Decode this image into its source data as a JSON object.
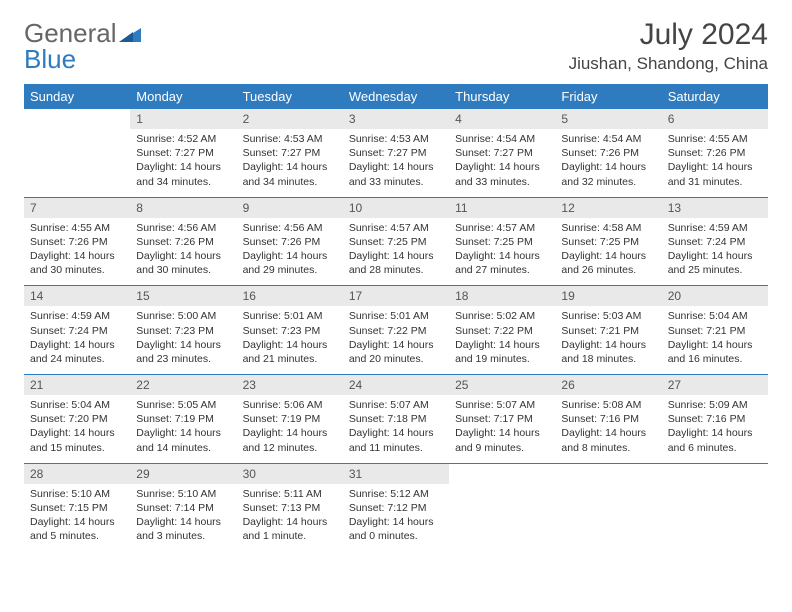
{
  "logo": {
    "text1": "General",
    "text2": "Blue"
  },
  "title": "July 2024",
  "location": "Jiushan, Shandong, China",
  "colors": {
    "header_bg": "#2f7bbf",
    "daynum_bg": "#e9e9e9",
    "border": "#2f7bbf"
  },
  "weekdays": [
    "Sunday",
    "Monday",
    "Tuesday",
    "Wednesday",
    "Thursday",
    "Friday",
    "Saturday"
  ],
  "weeks": [
    [
      null,
      {
        "n": "1",
        "sr": "4:52 AM",
        "ss": "7:27 PM",
        "dl": "14 hours and 34 minutes."
      },
      {
        "n": "2",
        "sr": "4:53 AM",
        "ss": "7:27 PM",
        "dl": "14 hours and 34 minutes."
      },
      {
        "n": "3",
        "sr": "4:53 AM",
        "ss": "7:27 PM",
        "dl": "14 hours and 33 minutes."
      },
      {
        "n": "4",
        "sr": "4:54 AM",
        "ss": "7:27 PM",
        "dl": "14 hours and 33 minutes."
      },
      {
        "n": "5",
        "sr": "4:54 AM",
        "ss": "7:26 PM",
        "dl": "14 hours and 32 minutes."
      },
      {
        "n": "6",
        "sr": "4:55 AM",
        "ss": "7:26 PM",
        "dl": "14 hours and 31 minutes."
      }
    ],
    [
      {
        "n": "7",
        "sr": "4:55 AM",
        "ss": "7:26 PM",
        "dl": "14 hours and 30 minutes."
      },
      {
        "n": "8",
        "sr": "4:56 AM",
        "ss": "7:26 PM",
        "dl": "14 hours and 30 minutes."
      },
      {
        "n": "9",
        "sr": "4:56 AM",
        "ss": "7:26 PM",
        "dl": "14 hours and 29 minutes."
      },
      {
        "n": "10",
        "sr": "4:57 AM",
        "ss": "7:25 PM",
        "dl": "14 hours and 28 minutes."
      },
      {
        "n": "11",
        "sr": "4:57 AM",
        "ss": "7:25 PM",
        "dl": "14 hours and 27 minutes."
      },
      {
        "n": "12",
        "sr": "4:58 AM",
        "ss": "7:25 PM",
        "dl": "14 hours and 26 minutes."
      },
      {
        "n": "13",
        "sr": "4:59 AM",
        "ss": "7:24 PM",
        "dl": "14 hours and 25 minutes."
      }
    ],
    [
      {
        "n": "14",
        "sr": "4:59 AM",
        "ss": "7:24 PM",
        "dl": "14 hours and 24 minutes."
      },
      {
        "n": "15",
        "sr": "5:00 AM",
        "ss": "7:23 PM",
        "dl": "14 hours and 23 minutes."
      },
      {
        "n": "16",
        "sr": "5:01 AM",
        "ss": "7:23 PM",
        "dl": "14 hours and 21 minutes."
      },
      {
        "n": "17",
        "sr": "5:01 AM",
        "ss": "7:22 PM",
        "dl": "14 hours and 20 minutes."
      },
      {
        "n": "18",
        "sr": "5:02 AM",
        "ss": "7:22 PM",
        "dl": "14 hours and 19 minutes."
      },
      {
        "n": "19",
        "sr": "5:03 AM",
        "ss": "7:21 PM",
        "dl": "14 hours and 18 minutes."
      },
      {
        "n": "20",
        "sr": "5:04 AM",
        "ss": "7:21 PM",
        "dl": "14 hours and 16 minutes."
      }
    ],
    [
      {
        "n": "21",
        "sr": "5:04 AM",
        "ss": "7:20 PM",
        "dl": "14 hours and 15 minutes."
      },
      {
        "n": "22",
        "sr": "5:05 AM",
        "ss": "7:19 PM",
        "dl": "14 hours and 14 minutes."
      },
      {
        "n": "23",
        "sr": "5:06 AM",
        "ss": "7:19 PM",
        "dl": "14 hours and 12 minutes."
      },
      {
        "n": "24",
        "sr": "5:07 AM",
        "ss": "7:18 PM",
        "dl": "14 hours and 11 minutes."
      },
      {
        "n": "25",
        "sr": "5:07 AM",
        "ss": "7:17 PM",
        "dl": "14 hours and 9 minutes."
      },
      {
        "n": "26",
        "sr": "5:08 AM",
        "ss": "7:16 PM",
        "dl": "14 hours and 8 minutes."
      },
      {
        "n": "27",
        "sr": "5:09 AM",
        "ss": "7:16 PM",
        "dl": "14 hours and 6 minutes."
      }
    ],
    [
      {
        "n": "28",
        "sr": "5:10 AM",
        "ss": "7:15 PM",
        "dl": "14 hours and 5 minutes."
      },
      {
        "n": "29",
        "sr": "5:10 AM",
        "ss": "7:14 PM",
        "dl": "14 hours and 3 minutes."
      },
      {
        "n": "30",
        "sr": "5:11 AM",
        "ss": "7:13 PM",
        "dl": "14 hours and 1 minute."
      },
      {
        "n": "31",
        "sr": "5:12 AM",
        "ss": "7:12 PM",
        "dl": "14 hours and 0 minutes."
      },
      null,
      null,
      null
    ]
  ],
  "labels": {
    "sunrise": "Sunrise:",
    "sunset": "Sunset:",
    "daylight": "Daylight:"
  }
}
